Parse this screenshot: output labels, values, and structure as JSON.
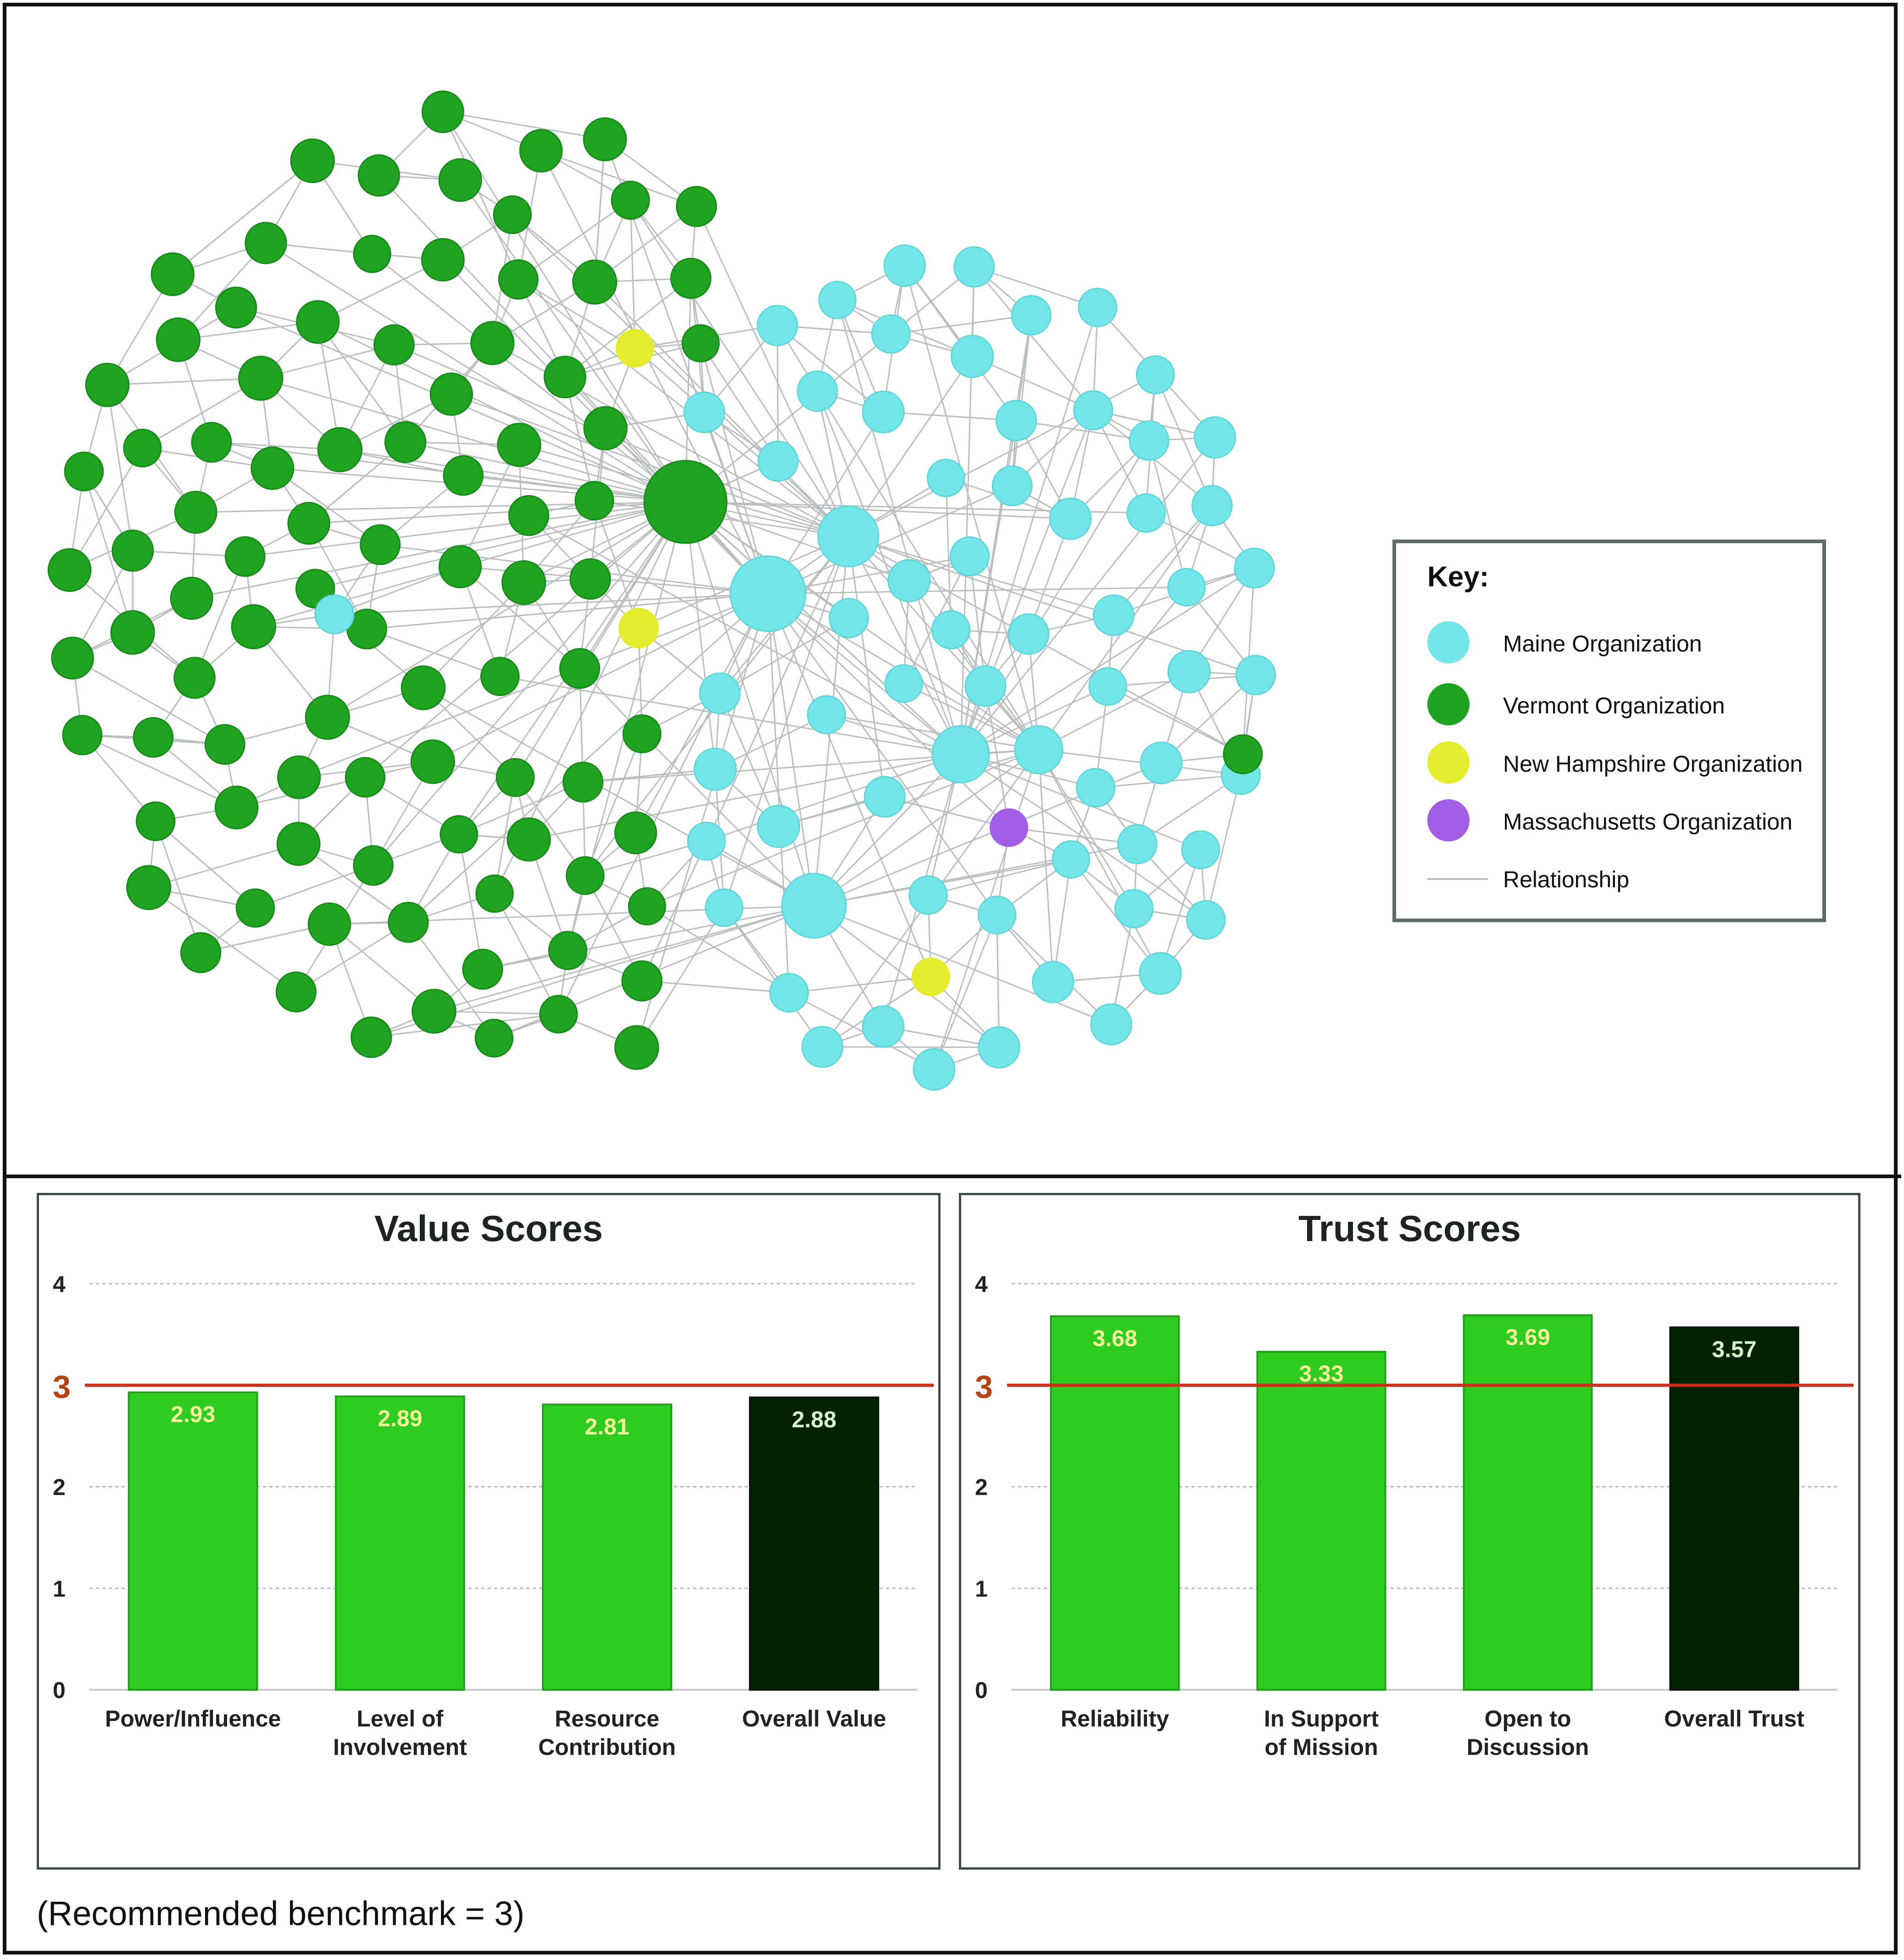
{
  "network": {
    "colors": {
      "maine": "#73e6ea",
      "vermont": "#1fa321",
      "new_hampshire": "#e4ed2e",
      "massachusetts": "#a25ee6",
      "relationship": "#b9bec0"
    },
    "key": {
      "title": "Key:",
      "items": [
        {
          "label": "Maine Organization",
          "type": "node",
          "color": "#73e6ea"
        },
        {
          "label": "Vermont Organization",
          "type": "node",
          "color": "#1fa321"
        },
        {
          "label": "New Hampshire Organization",
          "type": "node",
          "color": "#e4ed2e"
        },
        {
          "label": "Massachusetts Organization",
          "type": "node",
          "color": "#a25ee6"
        },
        {
          "label": "Relationship",
          "type": "line",
          "color": "#b9bec0"
        }
      ]
    }
  },
  "chart_data": [
    {
      "type": "bar",
      "title": "Value Scores",
      "categories": [
        "Power/Influence",
        "Level of Involvement",
        "Resource Contribution",
        "Overall Value"
      ],
      "values": [
        2.93,
        2.89,
        2.81,
        2.88
      ],
      "value_labels": [
        "2.93",
        "2.89",
        "2.81",
        "2.88"
      ],
      "bar_colors": [
        "#2ecc1f",
        "#2ecc1f",
        "#2ecc1f",
        "#012201"
      ],
      "ylim": [
        0,
        4
      ],
      "yticks": [
        "0",
        "1",
        "2",
        "3",
        "4"
      ],
      "benchmark": 3,
      "grid": true
    },
    {
      "type": "bar",
      "title": "Trust Scores",
      "categories": [
        "Reliability",
        "In Support of Mission",
        "Open to Discussion",
        "Overall Trust"
      ],
      "values": [
        3.68,
        3.33,
        3.69,
        3.57
      ],
      "value_labels": [
        "3.68",
        "3.33",
        "3.69",
        "3.57"
      ],
      "bar_colors": [
        "#2ecc1f",
        "#2ecc1f",
        "#2ecc1f",
        "#012201"
      ],
      "ylim": [
        0,
        4
      ],
      "yticks": [
        "0",
        "1",
        "2",
        "3",
        "4"
      ],
      "benchmark": 3,
      "grid": true
    }
  ],
  "footnote": "(Recommended benchmark = 3)"
}
